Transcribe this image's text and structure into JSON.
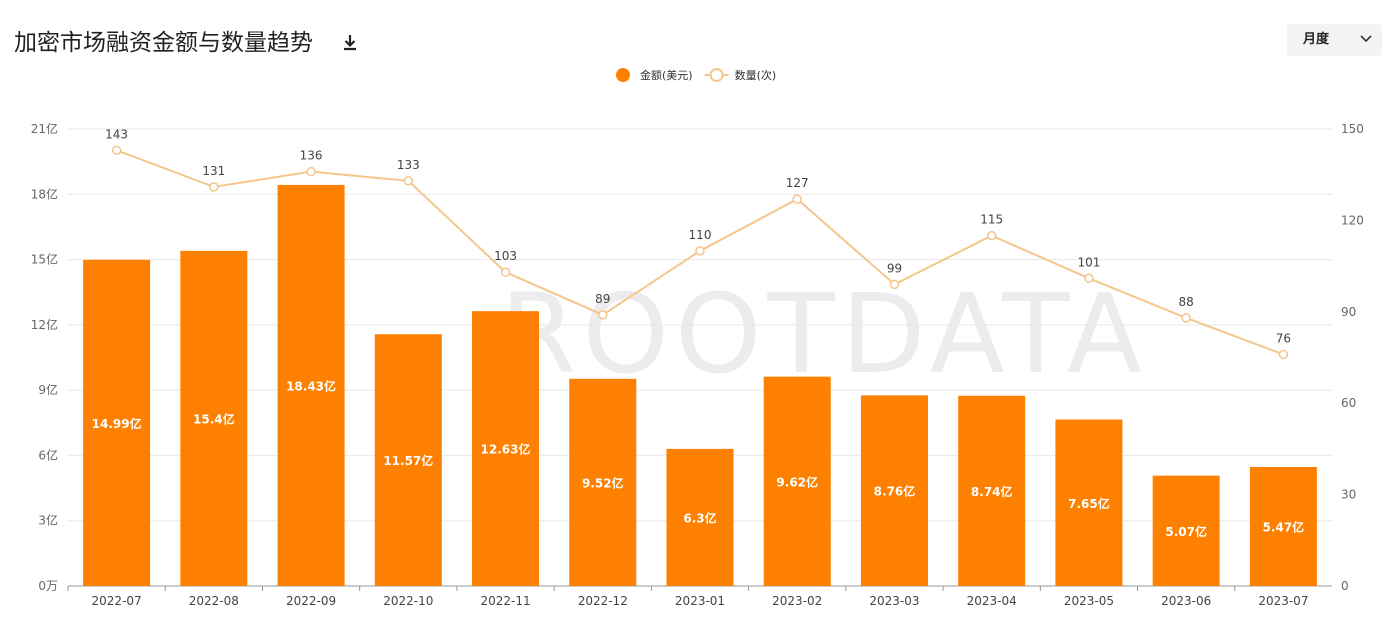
{
  "chart_data": {
    "type": "bar",
    "title": "加密市场融资金额与数量趋势",
    "categories": [
      "2022-07",
      "2022-08",
      "2022-09",
      "2022-10",
      "2022-11",
      "2022-12",
      "2023-01",
      "2023-02",
      "2023-03",
      "2023-04",
      "2023-05",
      "2023-06",
      "2023-07"
    ],
    "series": [
      {
        "name": "金额(美元)",
        "type": "bar",
        "color": "#fd8000",
        "values": [
          14.99,
          15.4,
          18.43,
          11.57,
          12.63,
          9.52,
          6.3,
          9.62,
          8.76,
          8.74,
          7.65,
          5.07,
          5.47
        ],
        "value_labels": [
          "14.99亿",
          "15.4亿",
          "18.43亿",
          "11.57亿",
          "12.63亿",
          "9.52亿",
          "6.3亿",
          "9.62亿",
          "8.76亿",
          "8.74亿",
          "7.65亿",
          "5.07亿",
          "5.47亿"
        ]
      },
      {
        "name": "数量(次)",
        "type": "line",
        "axis": "y2",
        "color": "#f5c68c",
        "values": [
          143,
          131,
          136,
          133,
          103,
          89,
          110,
          127,
          99,
          115,
          101,
          88,
          76
        ]
      }
    ],
    "ylim": [
      0,
      21
    ],
    "yticks": [
      {
        "value": 0,
        "label": "0万"
      },
      {
        "value": 3,
        "label": "3亿"
      },
      {
        "value": 6,
        "label": "6亿"
      },
      {
        "value": 9,
        "label": "9亿"
      },
      {
        "value": 12,
        "label": "12亿"
      },
      {
        "value": 15,
        "label": "15亿"
      },
      {
        "value": 18,
        "label": "18亿"
      },
      {
        "value": 21,
        "label": "21亿"
      }
    ],
    "y2lim": [
      0,
      150
    ],
    "y2ticks": [
      0,
      30,
      60,
      90,
      120,
      150
    ],
    "grid": true,
    "legend": "top"
  },
  "controls": {
    "period": "月度"
  },
  "watermark": "ROOTDATA"
}
